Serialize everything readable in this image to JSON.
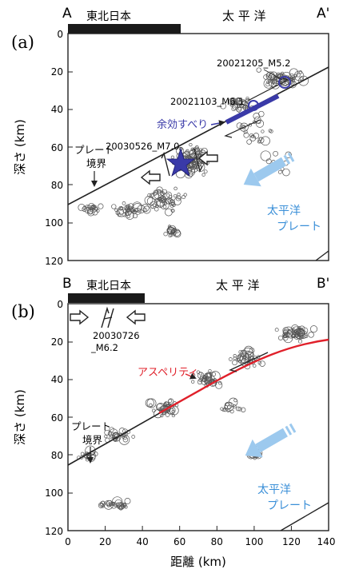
{
  "colors": {
    "ink": "#222222",
    "slip": "#3a3aa8",
    "asperity": "#e0202a",
    "pacific": "#3a8fd8",
    "arrow_fill": "#9cc9ee",
    "seismicity": "#555555",
    "mainshock_star": "#3a3aa8"
  },
  "axes": {
    "ylabel": "深さ (km)",
    "xlabel": "距離 (km)",
    "x_ticks": [
      "0",
      "20",
      "40",
      "60",
      "80",
      "100",
      "120",
      "140"
    ],
    "y_ticks": [
      "0",
      "20",
      "40",
      "60",
      "80",
      "100",
      "120"
    ],
    "x_range_km": [
      0,
      140
    ],
    "depth_range_km": [
      0,
      120
    ]
  },
  "panel_a": {
    "label": "(a)",
    "profile_start": "A",
    "profile_end": "A'",
    "region_bar_label": "東北日本",
    "sea_label": "太 平 洋",
    "plate_boundary_label_1": "プレート",
    "plate_boundary_label_2": "境界",
    "afterslip_label": "余効すべり",
    "pacific_plate_label_1": "太平洋",
    "pacific_plate_label_2": "プレート",
    "events": [
      {
        "label": "20021205_M5.2",
        "distance_km": 118,
        "depth_km": 26
      },
      {
        "label": "20021103_M6.1",
        "distance_km": 101,
        "depth_km": 38
      },
      {
        "label": "20030526_M7.0",
        "distance_km": 58,
        "depth_km": 71
      }
    ]
  },
  "panel_b": {
    "label": "(b)",
    "profile_start": "B",
    "profile_end": "B'",
    "region_bar_label": "東北日本",
    "sea_label": "太 平 洋",
    "event_label_1": "20030726",
    "event_label_2": "_M6.2",
    "asperity_label": "アスペリティ",
    "plate_boundary_label_1": "プレート",
    "plate_boundary_label_2": "境界",
    "pacific_plate_label_1": "太平洋",
    "pacific_plate_label_2": "プレート"
  }
}
